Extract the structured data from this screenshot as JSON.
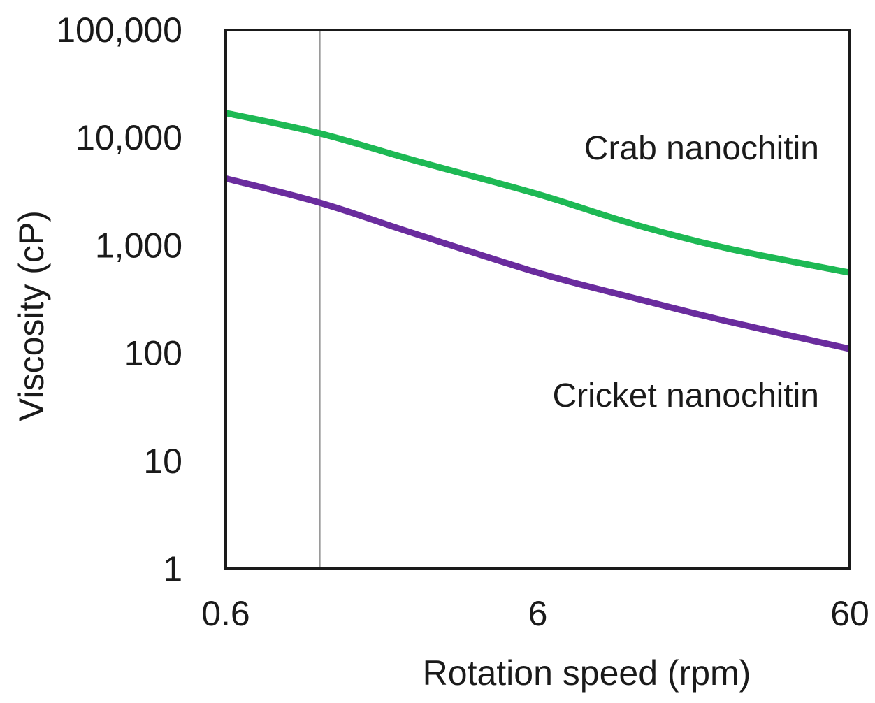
{
  "chart_data": {
    "type": "line",
    "title": "",
    "xlabel": "Rotation speed (rpm)",
    "ylabel": "Viscosity (cP)",
    "x_scale": "log",
    "y_scale": "log",
    "xlim": [
      0.6,
      60
    ],
    "ylim": [
      1,
      100000
    ],
    "x_ticks": [
      0.6,
      6,
      60
    ],
    "x_tick_labels": [
      "0.6",
      "6",
      "60"
    ],
    "y_ticks": [
      1,
      10,
      100,
      1000,
      10000,
      100000
    ],
    "y_tick_labels": [
      "1",
      "10",
      "100",
      "1,000",
      "10,000",
      "100,000"
    ],
    "reference_line_x": 1.2,
    "series": [
      {
        "name": "Crab nanochitin",
        "color": "#1db954",
        "x": [
          0.6,
          1.2,
          2.4,
          6,
          12,
          24,
          60
        ],
        "values": [
          17000,
          11000,
          6200,
          3000,
          1600,
          950,
          560
        ]
      },
      {
        "name": "Cricket nanochitin",
        "color": "#6a2c9e",
        "x": [
          0.6,
          1.2,
          2.4,
          6,
          12,
          24,
          60
        ],
        "values": [
          4200,
          2500,
          1300,
          560,
          330,
          200,
          110
        ]
      }
    ]
  }
}
